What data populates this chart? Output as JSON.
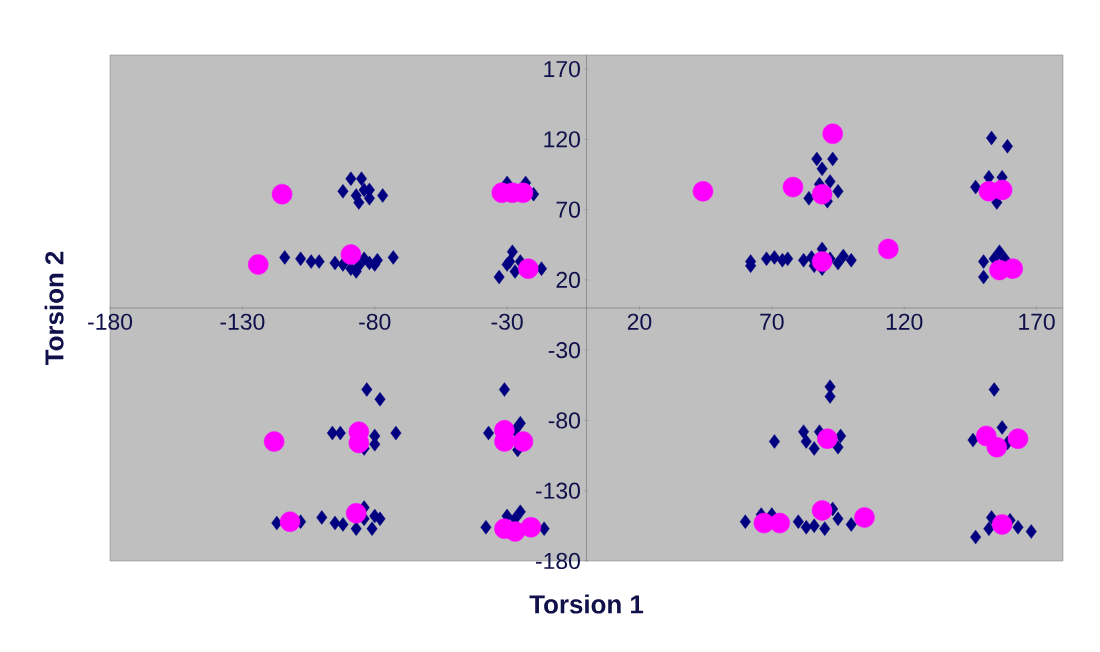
{
  "chart_data": {
    "type": "scatter",
    "xlabel": "Torsion 1",
    "ylabel": "Torsion 2",
    "xlim": [
      -180,
      180
    ],
    "ylim": [
      -180,
      180
    ],
    "xticks": [
      -180,
      -130,
      -80,
      -30,
      20,
      70,
      120,
      170
    ],
    "yticks": [
      -180,
      -130,
      -80,
      -30,
      20,
      70,
      120,
      170
    ],
    "series": [
      {
        "color": "#000080",
        "marker": "diamond",
        "x": [
          -92,
          -89,
          -85,
          -84,
          -86,
          -82,
          -77,
          -87,
          -82,
          -114,
          -108,
          -104,
          -101,
          -95,
          -92,
          -89,
          -86,
          -84,
          -82,
          -80,
          -79,
          -87,
          -73,
          -30,
          -23,
          -20,
          -33,
          -28,
          -30,
          -25,
          -17,
          -29,
          -27,
          153,
          159,
          87,
          93,
          89,
          84,
          95,
          92,
          88,
          91,
          147,
          152,
          157,
          155,
          62,
          62,
          68,
          71,
          74,
          76,
          82,
          85,
          89,
          89,
          92,
          95,
          97,
          100,
          86,
          156,
          150,
          150,
          154,
          158,
          -83,
          -78,
          -72,
          -96,
          -93,
          -80,
          -80,
          -84,
          -31,
          -25,
          -37,
          -27,
          -26,
          -117,
          -108,
          -100,
          -95,
          -92,
          -87,
          -84,
          -80,
          -78,
          -84,
          -81,
          -38,
          -30,
          -25,
          -16,
          -27,
          92,
          92,
          71,
          82,
          83,
          86,
          96,
          95,
          88,
          154,
          146,
          157,
          159,
          60,
          66,
          70,
          80,
          83,
          86,
          93,
          95,
          100,
          90,
          147,
          153,
          152,
          163,
          168,
          160
        ],
        "values": [
          83,
          92,
          92,
          84,
          75,
          84,
          80,
          80,
          78,
          36,
          35,
          33,
          33,
          32,
          31,
          28,
          30,
          35,
          32,
          31,
          34,
          26,
          36,
          89,
          89,
          81,
          22,
          40,
          31,
          33,
          28,
          33,
          26,
          121,
          115,
          106,
          106,
          99,
          78,
          83,
          90,
          88,
          76,
          86,
          93,
          93,
          75,
          33,
          30,
          35,
          36,
          34,
          35,
          34,
          36,
          42,
          28,
          35,
          32,
          37,
          34,
          30,
          40,
          33,
          22,
          35,
          35,
          -58,
          -65,
          -89,
          -89,
          -89,
          -91,
          -97,
          -100,
          -58,
          -82,
          -89,
          -87,
          -101,
          -153,
          -152,
          -149,
          -153,
          -154,
          -157,
          -150,
          -148,
          -150,
          -142,
          -157,
          -156,
          -148,
          -145,
          -157,
          -150,
          -56,
          -63,
          -95,
          -88,
          -95,
          -100,
          -91,
          -99,
          -88,
          -58,
          -94,
          -85,
          -96,
          -152,
          -147,
          -147,
          -152,
          -156,
          -155,
          -143,
          -150,
          -154,
          -157,
          -163,
          -149,
          -157,
          -156,
          -159,
          -151
        ]
      },
      {
        "color": "#ff00ff",
        "marker": "circle",
        "x": [
          -115,
          -124,
          -89,
          -32,
          -28,
          -24,
          -22,
          93,
          44,
          78,
          89,
          114,
          89,
          152,
          157,
          156,
          161,
          -118,
          -86,
          -86,
          -31,
          -31,
          -24,
          -112,
          -87,
          -31,
          -27,
          -21,
          91,
          151,
          155,
          163,
          67,
          73,
          89,
          105,
          157
        ],
        "values": [
          81,
          31,
          38,
          82,
          82,
          82,
          28,
          124,
          83,
          86,
          81,
          42,
          33,
          83,
          84,
          27,
          28,
          -95,
          -88,
          -96,
          -87,
          -95,
          -95,
          -152,
          -146,
          -157,
          -159,
          -156,
          -93,
          -91,
          -99,
          -93,
          -153,
          -153,
          -144,
          -149,
          -154
        ]
      }
    ]
  }
}
